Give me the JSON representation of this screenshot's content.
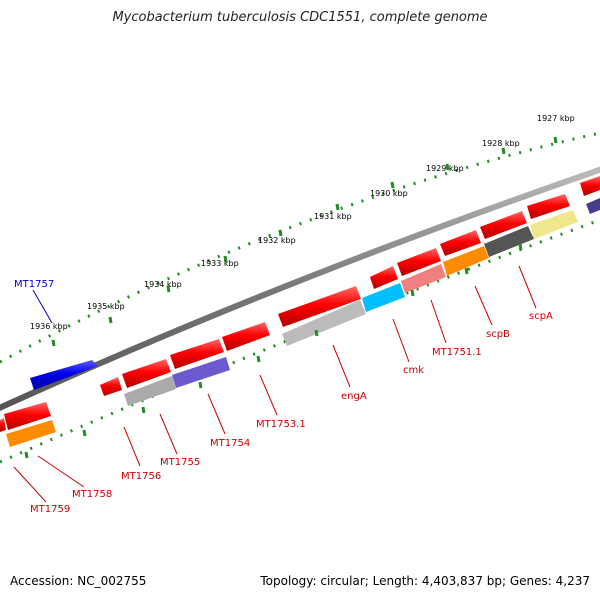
{
  "title": "Mycobacterium tuberculosis CDC1551, complete genome",
  "footer": {
    "accession": "Accession: NC_002755",
    "summary": "Topology: circular; Length: 4,403,837 bp; Genes: 4,237"
  },
  "colors": {
    "backbone": "#888888",
    "tick": "#228B22",
    "label_red": "#cc0000",
    "label_blue": "#0000cc"
  },
  "kbp_labels": [
    "1927 kbp",
    "1928 kbp",
    "1929 kbp",
    "1930 kbp",
    "1931 kbp",
    "1932 kbp",
    "1933 kbp",
    "1934 kbp",
    "1935 kbp",
    "1936 kbp"
  ],
  "gene_labels": [
    {
      "text": "MT1757",
      "color": "#0000cc"
    },
    {
      "text": "scpA",
      "color": "#cc0000"
    },
    {
      "text": "scpB",
      "color": "#cc0000"
    },
    {
      "text": "MT1751.1",
      "color": "#cc0000"
    },
    {
      "text": "cmk",
      "color": "#cc0000"
    },
    {
      "text": "engA",
      "color": "#cc0000"
    },
    {
      "text": "MT1753.1",
      "color": "#cc0000"
    },
    {
      "text": "MT1754",
      "color": "#cc0000"
    },
    {
      "text": "MT1755",
      "color": "#cc0000"
    },
    {
      "text": "MT1756",
      "color": "#cc0000"
    },
    {
      "text": "MT1758",
      "color": "#cc0000"
    },
    {
      "text": "MT1759",
      "color": "#cc0000"
    }
  ]
}
